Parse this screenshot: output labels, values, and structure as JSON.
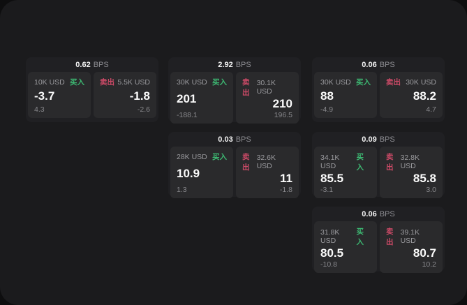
{
  "labels": {
    "bps": "BPS",
    "buy": "买入",
    "sell": "卖出"
  },
  "colors": {
    "outer_bg": "#0e0e0f",
    "page_bg": "#1b1b1d",
    "card_bg": "#202023",
    "panel_bg": "#2a2a2c",
    "text_gray": "#9a9a9e",
    "text_white": "#fafafa",
    "buy_green": "#3dba73",
    "sell_red": "#cc4a67"
  },
  "cards": [
    {
      "bps": "0.62",
      "buy": {
        "amount": "10K USD",
        "value": "-3.7",
        "sub": "4.3"
      },
      "sell": {
        "amount": "5.5K USD",
        "value": "-1.8",
        "sub": "-2.6"
      }
    },
    {
      "bps": "2.92",
      "buy": {
        "amount": "30K USD",
        "value": "201",
        "sub": "-188.1"
      },
      "sell": {
        "amount": "30.1K USD",
        "value": "210",
        "sub": "196.5"
      }
    },
    {
      "bps": "0.06",
      "buy": {
        "amount": "30K USD",
        "value": "88",
        "sub": "-4.9"
      },
      "sell": {
        "amount": "30K USD",
        "value": "88.2",
        "sub": "4.7"
      }
    },
    {
      "bps": "0.03",
      "buy": {
        "amount": "28K USD",
        "value": "10.9",
        "sub": "1.3"
      },
      "sell": {
        "amount": "32.6K USD",
        "value": "11",
        "sub": "-1.8"
      }
    },
    {
      "bps": "0.09",
      "buy": {
        "amount": "34.1K USD",
        "value": "85.5",
        "sub": "-3.1"
      },
      "sell": {
        "amount": "32.8K USD",
        "value": "85.8",
        "sub": "3.0"
      }
    },
    {
      "bps": "0.06",
      "buy": {
        "amount": "31.8K USD",
        "value": "80.5",
        "sub": "-10.8"
      },
      "sell": {
        "amount": "39.1K USD",
        "value": "80.7",
        "sub": "10.2"
      }
    }
  ]
}
